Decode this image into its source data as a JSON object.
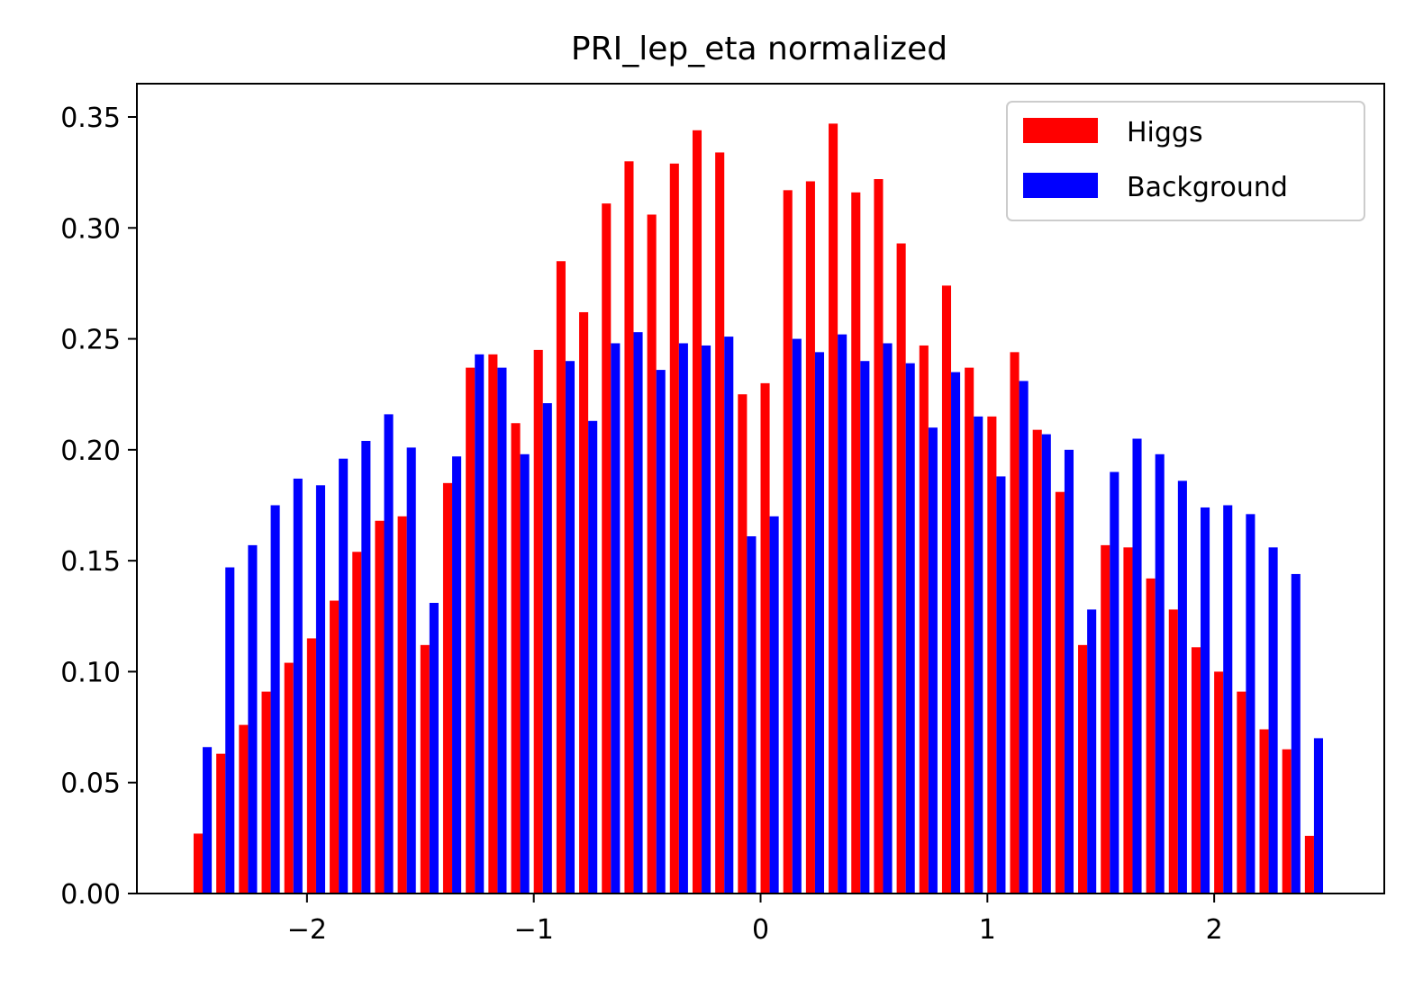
{
  "chart_data": {
    "type": "bar",
    "title": "PRI_lep_eta normalized",
    "xlabel": "",
    "ylabel": "",
    "xlim": [
      -2.75,
      2.75
    ],
    "ylim": [
      0,
      0.365
    ],
    "grid": false,
    "legend_position": "top-right",
    "x_ticks": [
      -2,
      -1,
      0,
      1,
      2
    ],
    "x_tick_labels": [
      "−2",
      "−1",
      "0",
      "1",
      "2"
    ],
    "y_ticks": [
      0,
      0.05,
      0.1,
      0.15,
      0.2,
      0.25,
      0.3,
      0.35
    ],
    "y_tick_labels": [
      "0.00",
      "0.05",
      "0.10",
      "0.15",
      "0.20",
      "0.25",
      "0.30",
      "0.35"
    ],
    "bin_edges_range": [
      -2.5,
      2.5
    ],
    "bin_count": 50,
    "series": [
      {
        "name": "Higgs",
        "color": "#ff0000",
        "values": [
          0.027,
          0.063,
          0.076,
          0.091,
          0.104,
          0.115,
          0.132,
          0.154,
          0.168,
          0.17,
          0.112,
          0.185,
          0.237,
          0.243,
          0.212,
          0.245,
          0.285,
          0.262,
          0.311,
          0.33,
          0.306,
          0.329,
          0.344,
          0.334,
          0.225,
          0.23,
          0.317,
          0.321,
          0.347,
          0.316,
          0.322,
          0.293,
          0.247,
          0.274,
          0.237,
          0.215,
          0.244,
          0.209,
          0.181,
          0.112,
          0.157,
          0.156,
          0.142,
          0.128,
          0.111,
          0.1,
          0.091,
          0.074,
          0.065,
          0.026
        ]
      },
      {
        "name": "Background",
        "color": "#0000ff",
        "values": [
          0.066,
          0.147,
          0.157,
          0.175,
          0.187,
          0.184,
          0.196,
          0.204,
          0.216,
          0.201,
          0.131,
          0.197,
          0.243,
          0.237,
          0.198,
          0.221,
          0.24,
          0.213,
          0.248,
          0.253,
          0.236,
          0.248,
          0.247,
          0.251,
          0.161,
          0.17,
          0.25,
          0.244,
          0.252,
          0.24,
          0.248,
          0.239,
          0.21,
          0.235,
          0.215,
          0.188,
          0.231,
          0.207,
          0.2,
          0.128,
          0.19,
          0.205,
          0.198,
          0.186,
          0.174,
          0.175,
          0.171,
          0.156,
          0.144,
          0.07
        ]
      }
    ]
  }
}
